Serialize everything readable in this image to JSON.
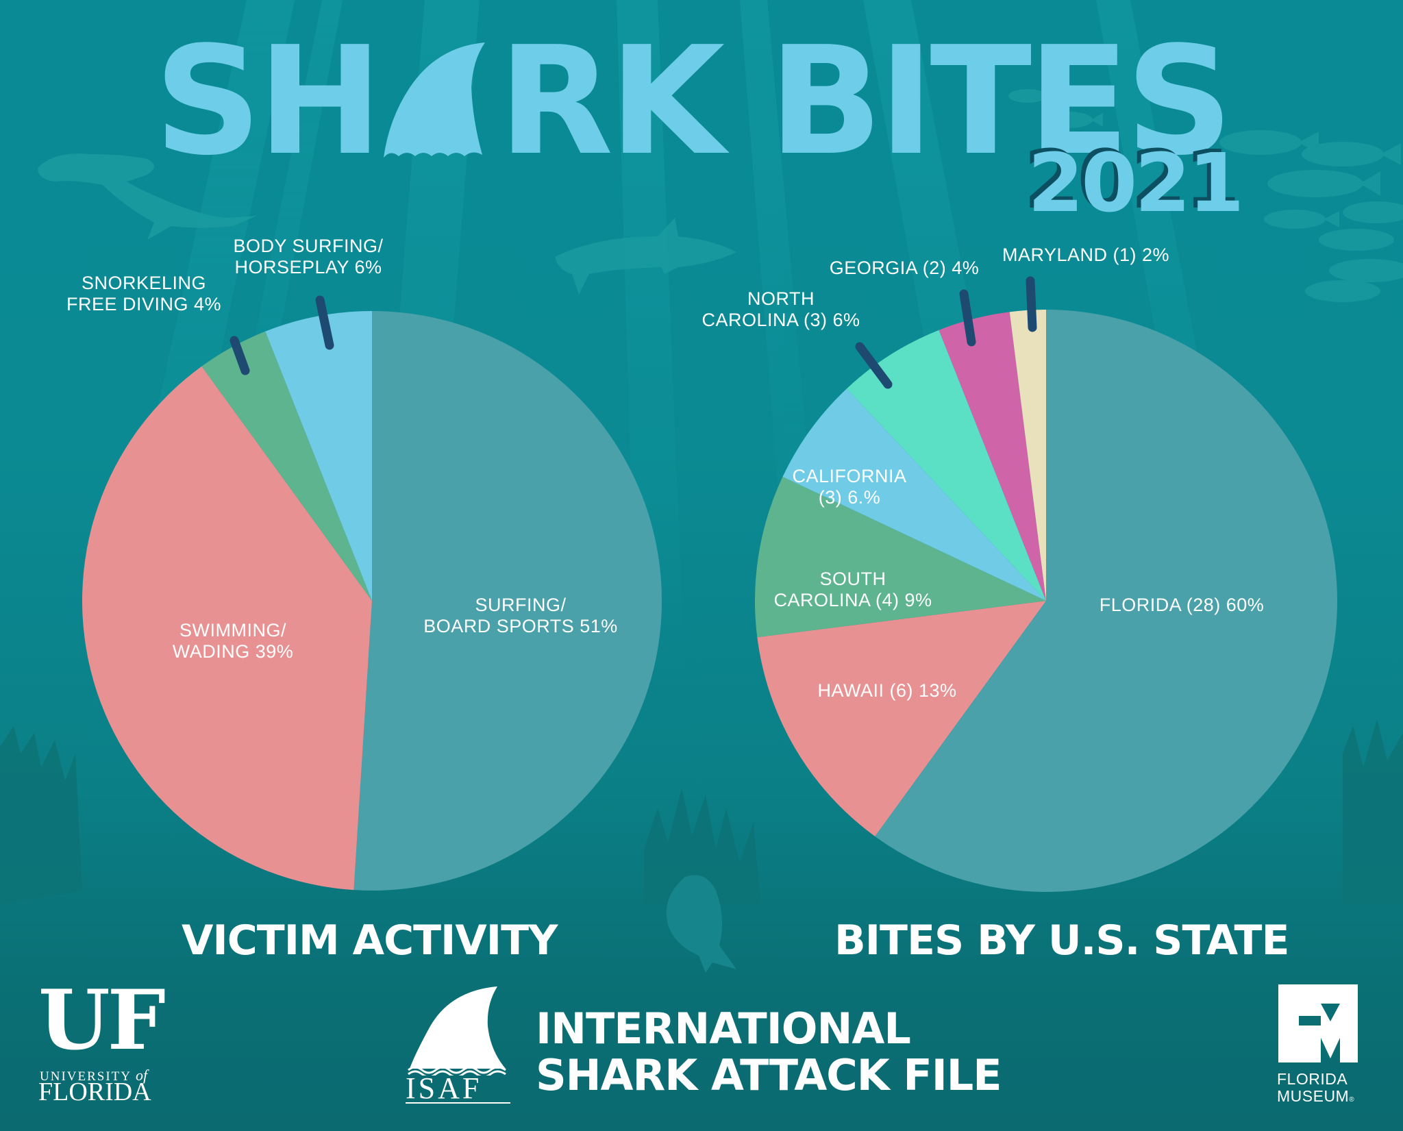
{
  "header": {
    "title_part1": "SH",
    "title_part2": "RK BITES",
    "year": "2021"
  },
  "colors": {
    "background": "#0a8a95",
    "title": "#6ecde8",
    "year_shadow": "#0c4f60",
    "leader_line": "#1e4a72",
    "text": "#ffffff"
  },
  "charts": {
    "victim_activity": {
      "section_title": "VICTIM ACTIVITY",
      "labels": {
        "surfing_l1": "SURFING/",
        "surfing_l2": "BOARD SPORTS 51%",
        "swimming_l1": "SWIMMING/",
        "swimming_l2": "WADING 39%",
        "snorkeling_l1": "SNORKELING",
        "snorkeling_l2": "FREE DIVING 4%",
        "bodysurf_l1": "BODY SURFING/",
        "bodysurf_l2": "HORSEPLAY 6%"
      }
    },
    "bites_by_state": {
      "section_title": "BITES BY U.S. STATE",
      "labels": {
        "florida": "FLORIDA (28) 60%",
        "hawaii": "HAWAII (6) 13%",
        "south_carolina_l1": "SOUTH",
        "south_carolina_l2": "CAROLINA (4) 9%",
        "california_l1": "CALIFORNIA",
        "california_l2": "(3) 6.%",
        "north_carolina_l1": "NORTH",
        "north_carolina_l2": "CAROLINA (3) 6%",
        "georgia": "GEORGIA (2) 4%",
        "maryland": "MARYLAND (1) 2%"
      }
    }
  },
  "chart_data": [
    {
      "type": "pie",
      "title": "VICTIM ACTIVITY",
      "start_angle": "12 o'clock, clockwise",
      "categories": [
        "Surfing/Board Sports",
        "Swimming/Wading",
        "Snorkeling Free Diving",
        "Body Surfing/Horseplay"
      ],
      "values": [
        51,
        39,
        4,
        6
      ],
      "unit": "%",
      "colors": [
        "#4aa1aa",
        "#e89192",
        "#5db48f",
        "#6fcbe6"
      ],
      "labels": [
        "SURFING/ BOARD SPORTS 51%",
        "SWIMMING/ WADING 39%",
        "SNORKELING FREE DIVING 4%",
        "BODY SURFING/ HORSEPLAY 6%"
      ]
    },
    {
      "type": "pie",
      "title": "BITES BY U.S. STATE",
      "start_angle": "12 o'clock, clockwise",
      "categories": [
        "Florida",
        "Hawaii",
        "South Carolina",
        "California",
        "North Carolina",
        "Georgia",
        "Maryland"
      ],
      "counts": [
        28,
        6,
        4,
        3,
        3,
        2,
        1
      ],
      "values": [
        60,
        13,
        9,
        6,
        6,
        4,
        2
      ],
      "unit": "%",
      "colors": [
        "#4aa1aa",
        "#e89192",
        "#5db48f",
        "#6fcbe6",
        "#5ce0c5",
        "#cf65a8",
        "#e9e1bb"
      ],
      "labels": [
        "FLORIDA (28) 60%",
        "HAWAII (6) 13%",
        "SOUTH CAROLINA (4) 9%",
        "CALIFORNIA (3) 6.%",
        "NORTH CAROLINA (3) 6%",
        "GEORGIA (2) 4%",
        "MARYLAND (1) 2%"
      ]
    }
  ],
  "footer": {
    "uf": {
      "mark": "UF",
      "line1": "UNIVERSITY",
      "line1_of": "of",
      "line2": "FLORIDA"
    },
    "isaf": {
      "abbr": "ISAF",
      "name_l1": "INTERNATIONAL",
      "name_l2": "SHARK ATTACK FILE"
    },
    "museum": {
      "line1": "FLORIDA",
      "line2": "MUSEUM",
      "reg": "®"
    }
  }
}
